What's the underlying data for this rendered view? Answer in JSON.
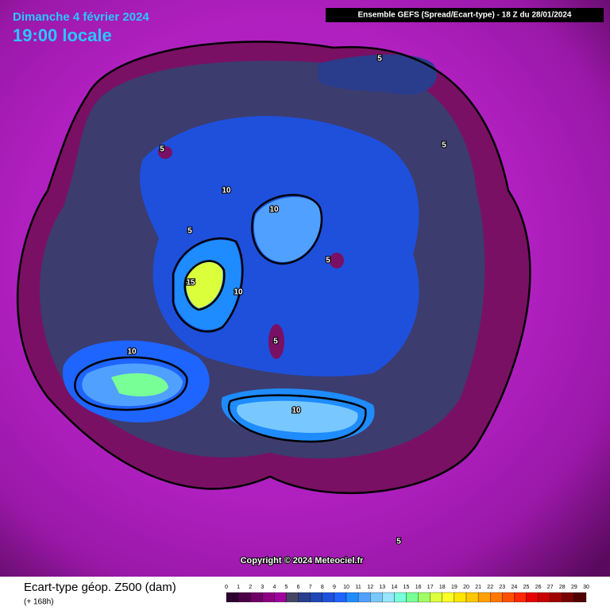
{
  "header": {
    "date": "Dimanche 4 février 2024",
    "time": "19:00 locale",
    "model": "Ensemble GEFS  (Spread/Ecart-type) - 18 Z du 28/01/2024"
  },
  "map": {
    "contour_labels": [
      "5",
      "5",
      "5",
      "10",
      "10",
      "5",
      "5",
      "15",
      "10",
      "5",
      "10",
      "10",
      "5"
    ]
  },
  "copyright": "Copyright © 2024 Meteociel.fr",
  "legend": {
    "title": "Ecart-type géop. Z500 (dam)",
    "lead": "(+ 168h)",
    "ticks": [
      0,
      1,
      2,
      3,
      4,
      5,
      6,
      7,
      8,
      9,
      10,
      11,
      12,
      13,
      14,
      15,
      16,
      17,
      18,
      19,
      20,
      21,
      22,
      23,
      24,
      25,
      26,
      27,
      28,
      29,
      30
    ],
    "colors": [
      "#2d0030",
      "#4b0048",
      "#6e0064",
      "#8c0082",
      "#a0009b",
      "#464664",
      "#2a3c8c",
      "#1e46b4",
      "#1e50dc",
      "#1e64ff",
      "#1e8cff",
      "#50a0ff",
      "#78c8ff",
      "#96e6ff",
      "#78ffdc",
      "#78ff96",
      "#a0ff64",
      "#dcff3c",
      "#ffff28",
      "#ffe600",
      "#ffc800",
      "#ffa000",
      "#ff7800",
      "#ff5000",
      "#ff2800",
      "#e60000",
      "#c80000",
      "#a00000",
      "#780000",
      "#500000"
    ]
  }
}
